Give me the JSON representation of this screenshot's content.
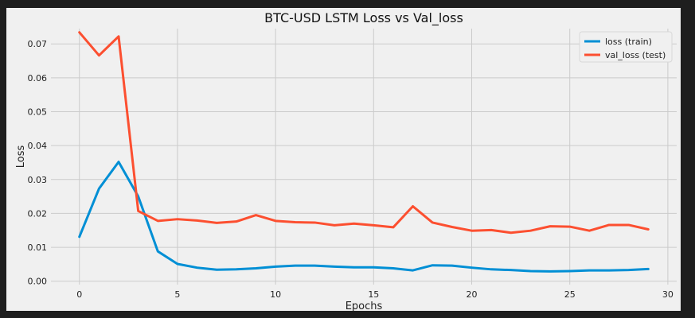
{
  "chart_data": {
    "type": "line",
    "title": "BTC-USD LSTM Loss vs Val_loss",
    "xlabel": "Epochs",
    "ylabel": "Loss",
    "xlim": [
      -1.45,
      30.45
    ],
    "ylim": [
      -0.001,
      0.0745
    ],
    "xticks": [
      "0",
      "5",
      "10",
      "15",
      "20",
      "25",
      "30"
    ],
    "yticks": [
      "0.00",
      "0.01",
      "0.02",
      "0.03",
      "0.04",
      "0.05",
      "0.06",
      "0.07"
    ],
    "grid": true,
    "legend_position": "top-right",
    "x": [
      0,
      1,
      2,
      3,
      4,
      5,
      6,
      7,
      8,
      9,
      10,
      11,
      12,
      13,
      14,
      15,
      16,
      17,
      18,
      19,
      20,
      21,
      22,
      23,
      24,
      25,
      26,
      27,
      28,
      29
    ],
    "series": [
      {
        "name": "loss (train)",
        "color": "#008fd5",
        "values": [
          0.0131,
          0.0273,
          0.0352,
          0.025,
          0.0088,
          0.0051,
          0.004,
          0.0034,
          0.0035,
          0.0038,
          0.0043,
          0.0046,
          0.0046,
          0.0043,
          0.0041,
          0.0041,
          0.0038,
          0.0032,
          0.0047,
          0.0046,
          0.004,
          0.0035,
          0.0033,
          0.003,
          0.0029,
          0.003,
          0.0032,
          0.0032,
          0.0033,
          0.0036
        ]
      },
      {
        "name": "val_loss (test)",
        "color": "#fc4f30",
        "values": [
          0.0734,
          0.0666,
          0.0722,
          0.0207,
          0.0178,
          0.0183,
          0.0179,
          0.0172,
          0.0176,
          0.0195,
          0.0178,
          0.0174,
          0.0173,
          0.0165,
          0.017,
          0.0165,
          0.0159,
          0.0221,
          0.0173,
          0.016,
          0.0149,
          0.0151,
          0.0143,
          0.0149,
          0.0162,
          0.0161,
          0.0149,
          0.0166,
          0.0166,
          0.0153
        ]
      }
    ]
  }
}
